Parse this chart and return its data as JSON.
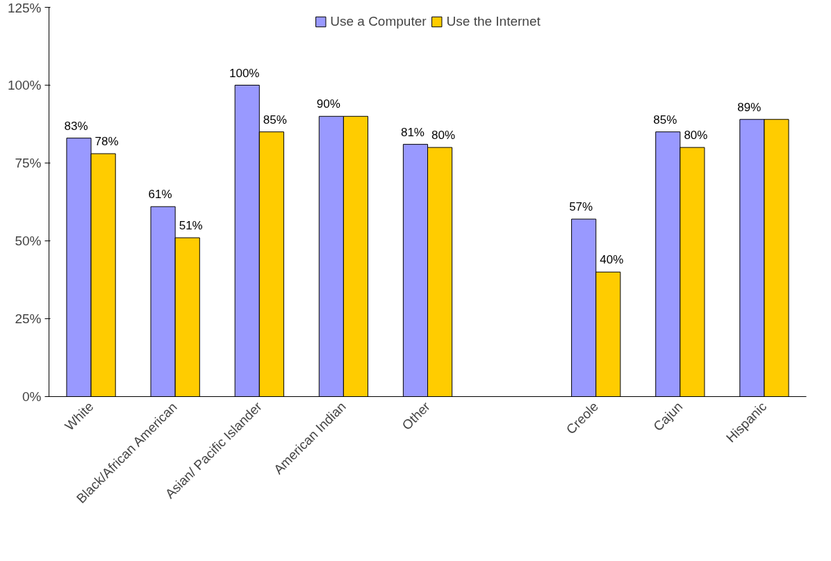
{
  "chart_data": {
    "type": "bar",
    "categories": [
      "White",
      "Black/African American",
      "Asian/ Pacific Islander",
      "American Indian",
      "Other",
      null,
      "Creole",
      "Cajun",
      "Hispanic"
    ],
    "series": [
      {
        "name": "Use a Computer",
        "color": "#9999ff",
        "values": [
          83,
          61,
          100,
          90,
          81,
          null,
          57,
          85,
          89
        ],
        "value_labels": [
          "83%",
          "61%",
          "100%",
          "90%",
          "81%",
          null,
          "57%",
          "85%",
          "89%"
        ]
      },
      {
        "name": "Use the Internet",
        "color": "#ffcc00",
        "values": [
          78,
          51,
          85,
          90,
          80,
          null,
          40,
          80,
          89
        ],
        "value_labels": [
          "78%",
          "51%",
          "85%",
          null,
          "80%",
          null,
          "40%",
          "80%",
          null
        ]
      }
    ],
    "ylim": [
      0,
      125
    ],
    "yticks": [
      {
        "value": 0,
        "label": "0%"
      },
      {
        "value": 25,
        "label": "25%"
      },
      {
        "value": 50,
        "label": "50%"
      },
      {
        "value": 75,
        "label": "75%"
      },
      {
        "value": 100,
        "label": "100%"
      },
      {
        "value": 125,
        "label": "125%"
      }
    ],
    "grid": false,
    "legend": "top"
  }
}
